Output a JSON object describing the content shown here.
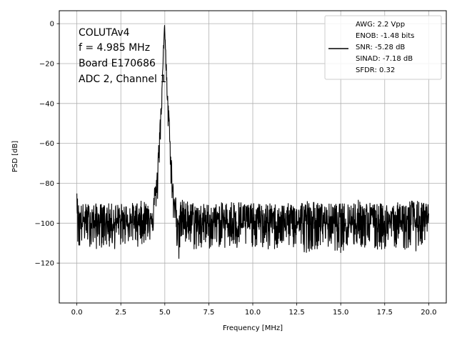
{
  "chart_data": {
    "type": "line",
    "title": "",
    "xlabel": "Frequency [MHz]",
    "ylabel": "PSD [dB]",
    "xlim": [
      -1.0,
      21.0
    ],
    "ylim": [
      -140,
      6.5
    ],
    "xticks": [
      0.0,
      2.5,
      5.0,
      7.5,
      10.0,
      12.5,
      15.0,
      17.5,
      20.0
    ],
    "xtick_labels": [
      "0.0",
      "2.5",
      "5.0",
      "7.5",
      "10.0",
      "12.5",
      "15.0",
      "17.5",
      "20.0"
    ],
    "yticks": [
      0,
      -20,
      -40,
      -60,
      -80,
      -100,
      -120
    ],
    "ytick_labels": [
      "0",
      "−20",
      "−40",
      "−60",
      "−80",
      "−100",
      "−120"
    ],
    "grid": true,
    "line_color": "#000000",
    "legend_placement": "top-right",
    "annotation_lines": [
      "COLUTAv4",
      "f = 4.985 MHz",
      "Board E170686",
      "ADC 2, Channel 1"
    ],
    "legend_lines": [
      "AWG: 2.2 Vpp",
      "ENOB: -1.48 bits",
      "SNR: -5.28 dB",
      "SINAD: -7.18 dB",
      "SFDR: 0.32"
    ],
    "series": [
      {
        "x": [
          0.0,
          0.05,
          0.12,
          0.25,
          0.5,
          1.0,
          1.5,
          2.0,
          2.5,
          3.0,
          3.5,
          4.0,
          4.3,
          4.5,
          4.6,
          4.7,
          4.8,
          4.9,
          4.95,
          4.985,
          5.02,
          5.1,
          5.2,
          5.3,
          5.4,
          5.5,
          5.8,
          6.0,
          7.0,
          8.0,
          9.0,
          10.0,
          11.0,
          12.0,
          13.0,
          14.0,
          15.0,
          16.0,
          17.0,
          18.0,
          19.0,
          20.0
        ],
        "center": [
          -85,
          -95,
          -98,
          -100,
          -99,
          -100,
          -100,
          -100,
          -100,
          -100,
          -99,
          -98,
          -95,
          -85,
          -75,
          -60,
          -40,
          -20,
          -8,
          0,
          -10,
          -30,
          -45,
          -62,
          -78,
          -90,
          -100,
          -100,
          -100,
          -100,
          -100,
          -100,
          -100,
          -100,
          -100,
          -100,
          -100,
          -100,
          -100,
          -100,
          -100,
          -100
        ],
        "upper": [
          -84,
          -88,
          -90,
          -90,
          -90,
          -90,
          -90,
          -90,
          -90,
          -90,
          -89,
          -88,
          -86,
          -78,
          -68,
          -52,
          -33,
          -15,
          -4,
          0,
          -6,
          -22,
          -38,
          -52,
          -70,
          -84,
          -90,
          -88,
          -90,
          -90,
          -88,
          -90,
          -90,
          -90,
          -88,
          -90,
          -90,
          -88,
          -90,
          -90,
          -88,
          -90
        ],
        "lower": [
          -86,
          -115,
          -116,
          -112,
          -110,
          -114,
          -112,
          -114,
          -112,
          -110,
          -112,
          -110,
          -108,
          -98,
          -88,
          -72,
          -50,
          -28,
          -12,
          0,
          -18,
          -40,
          -55,
          -72,
          -90,
          -100,
          -120,
          -112,
          -115,
          -112,
          -115,
          -112,
          -115,
          -112,
          -115,
          -112,
          -115,
          -112,
          -115,
          -112,
          -115,
          -112
        ]
      }
    ]
  }
}
